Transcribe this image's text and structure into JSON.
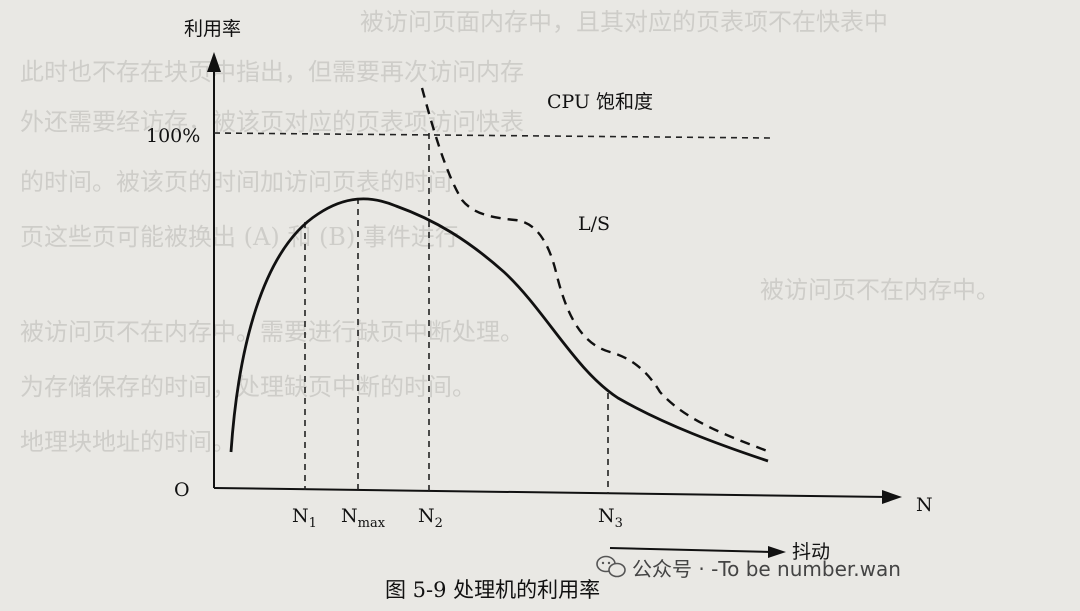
{
  "figure": {
    "y_axis_label": "利用率",
    "x_axis_label": "N",
    "origin_label": "O",
    "hundred_percent_label": "100%",
    "cpu_saturation_label": "CPU 饱和度",
    "ls_label": "L/S",
    "ticks": [
      {
        "main": "N",
        "sub": "1"
      },
      {
        "main": "N",
        "sub": "max"
      },
      {
        "main": "N",
        "sub": "2"
      },
      {
        "main": "N",
        "sub": "3"
      }
    ],
    "thrashing_label": "抖动",
    "caption": "图 5-9   处理机的利用率"
  },
  "watermark": {
    "text": "公众号 · -To be number.wan"
  },
  "background_text": [
    "被访问页面内存中，且其对应的页表项不在快表中",
    "此时也不存在块页中指出，但需要再次访问内存",
    "外还需要经访存，被该页对应的页表项访问快表",
    "的时间。被该页的时间加访问页表的时间",
    "页这些页可能被换出 (A) 和 (B) 事件进行",
    "被访问页不在内存中。",
    "被访问页不在内存中。需要进行缺页中断处理。",
    "为存储保存的时间，处理缺页中断的时间。",
    "地理块地址的时间。"
  ]
}
